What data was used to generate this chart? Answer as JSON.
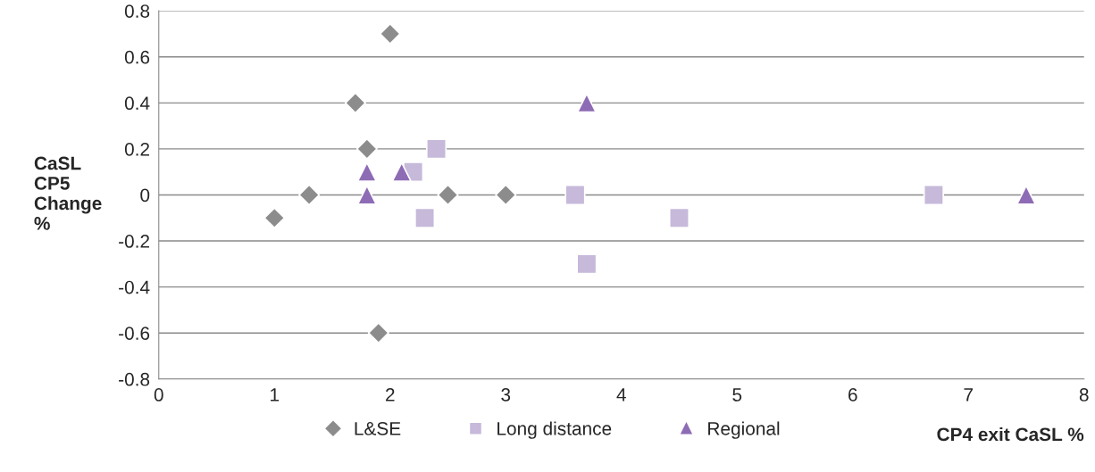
{
  "chart_data": {
    "type": "scatter",
    "xlabel": "CP4 exit CaSL %",
    "ylabel": "CaSL\nCP5\nChange\n%",
    "xlim": [
      0,
      8
    ],
    "xticks": [
      0,
      1,
      2,
      3,
      4,
      5,
      6,
      7,
      8
    ],
    "ylim": [
      -0.8,
      0.8
    ],
    "yticks": [
      -0.8,
      -0.6,
      -0.4,
      -0.2,
      0,
      0.2,
      0.4,
      0.6,
      0.8
    ],
    "grid": "y",
    "legend": "bottom",
    "series": [
      {
        "name": "L&SE",
        "color": "#8c8c8c",
        "marker": "diamond",
        "x": [
          1.0,
          1.3,
          1.7,
          1.8,
          2.0,
          1.9,
          2.5,
          3.0
        ],
        "values": [
          -0.1,
          0,
          0.4,
          0.2,
          0.7,
          -0.6,
          0,
          0
        ]
      },
      {
        "name": "Long distance",
        "color": "#c6b9da",
        "marker": "square",
        "x": [
          2.2,
          2.4,
          2.3,
          3.6,
          3.7,
          4.5,
          6.7
        ],
        "values": [
          0.1,
          0.2,
          -0.1,
          0,
          -0.3,
          -0.1,
          0
        ]
      },
      {
        "name": "Regional",
        "color": "#8e6bb5",
        "marker": "triangle",
        "x": [
          1.8,
          1.8,
          2.1,
          3.7,
          7.5
        ],
        "values": [
          0.1,
          0,
          0.1,
          0.4,
          0
        ]
      }
    ]
  }
}
